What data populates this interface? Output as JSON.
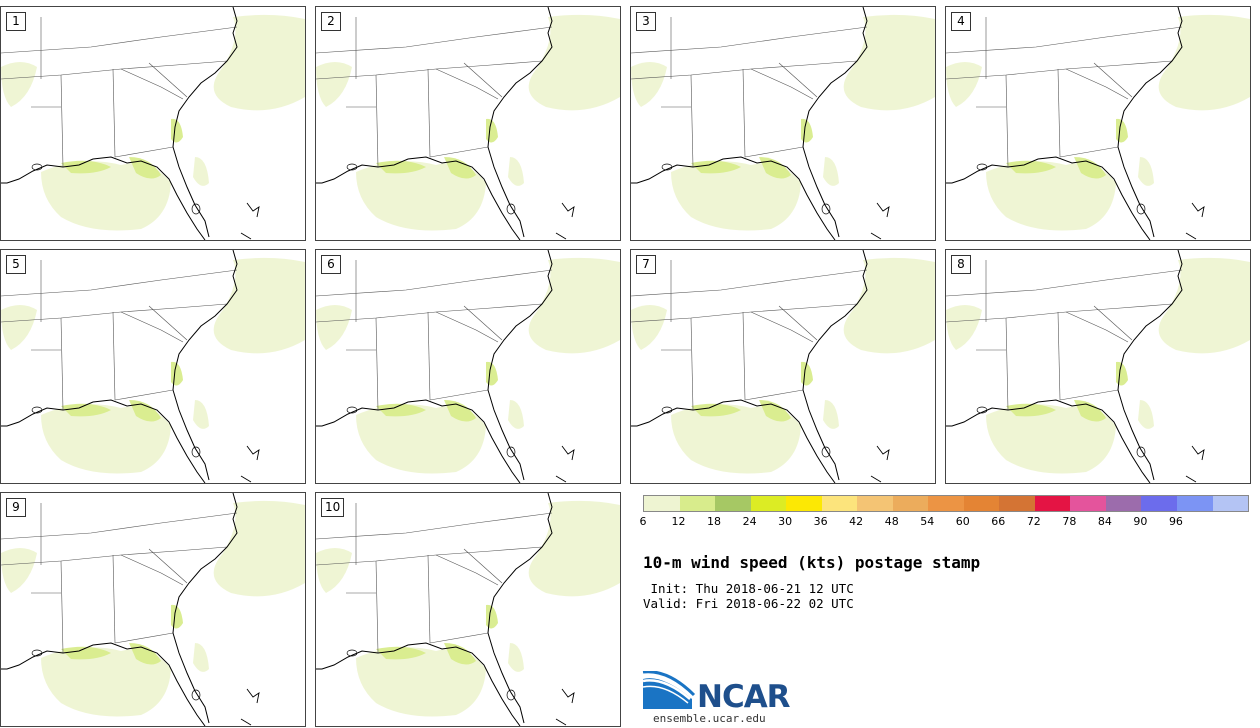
{
  "panels": [
    {
      "label": "1"
    },
    {
      "label": "2"
    },
    {
      "label": "3"
    },
    {
      "label": "4"
    },
    {
      "label": "5"
    },
    {
      "label": "6"
    },
    {
      "label": "7"
    },
    {
      "label": "8"
    },
    {
      "label": "9"
    },
    {
      "label": "10"
    }
  ],
  "colorbar": {
    "colors": [
      "#eef4d2",
      "#d8ec8c",
      "#a6c864",
      "#dcec24",
      "#fce804",
      "#fce47c",
      "#f4c474",
      "#ecac5c",
      "#ec9444",
      "#e48434",
      "#d47434",
      "#e41444",
      "#e4549c",
      "#9c6cac",
      "#6c6cec",
      "#7c94f4",
      "#b4c4f4"
    ],
    "ticks": [
      "6",
      "12",
      "18",
      "24",
      "30",
      "36",
      "42",
      "48",
      "54",
      "60",
      "66",
      "72",
      "78",
      "84",
      "90",
      "96"
    ]
  },
  "title": "10-m wind speed (kts) postage stamp",
  "init": " Init: Thu 2018-06-21 12 UTC",
  "valid": "Valid: Fri 2018-06-22 02 UTC",
  "logo": {
    "text": "NCAR",
    "url": "ensemble.ucar.edu"
  }
}
